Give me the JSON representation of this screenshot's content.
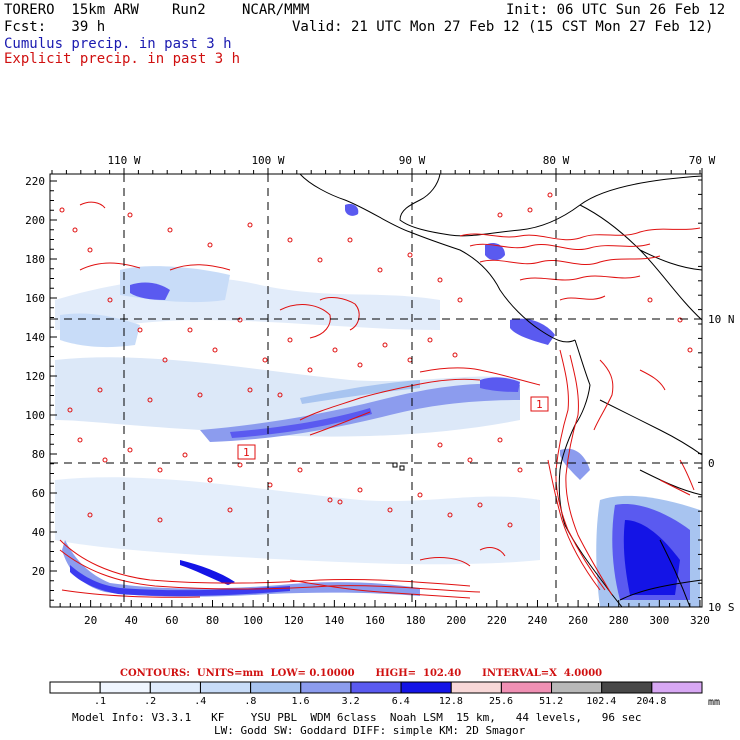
{
  "header": {
    "model": "TORERO  15km ARW",
    "run": "Run2",
    "org": "NCAR/MMM",
    "init": "Init: 06 UTC Sun 26 Feb 12",
    "fcst": "Fcst:   39 h",
    "valid": "Valid: 21 UTC Mon 27 Feb 12 (15 CST Mon 27 Feb 12)",
    "line_cumulus": "Cumulus precip. in past 3 h",
    "line_explicit": "Explicit precip. in past 3 h"
  },
  "map": {
    "lon_labels": [
      "110 W",
      "100 W",
      "90 W",
      "80 W",
      "70 W"
    ],
    "lat_labels": [
      "10 N",
      "0",
      "10 S"
    ],
    "x_ticks": [
      "20",
      "40",
      "60",
      "80",
      "100",
      "120",
      "140",
      "160",
      "180",
      "200",
      "220",
      "240",
      "260",
      "280",
      "300",
      "320"
    ],
    "y_ticks": [
      "220",
      "200",
      "180",
      "160",
      "140",
      "120",
      "100",
      "80",
      "60",
      "40",
      "20"
    ],
    "contour_label_1": "1",
    "contour_label_2": "1"
  },
  "contours": {
    "text": "CONTOURS:  UNITS=mm  LOW= 0.10000      HIGH=  102.40      INTERVAL=X  4.0000"
  },
  "legend": {
    "unit": "mm",
    "labels": [
      ".1",
      ".2",
      ".4",
      ".8",
      "1.6",
      "3.2",
      "6.4",
      "12.8",
      "25.6",
      "51.2",
      "102.4",
      "204.8"
    ],
    "colors": [
      "#ffffff",
      "#f0f6ff",
      "#e0ecfc",
      "#c8dcf8",
      "#a8c4f0",
      "#8c9cee",
      "#5a5af0",
      "#1414e6",
      "#f8d8d8",
      "#f090b4",
      "#b8b8b8",
      "#484848",
      "#d8a8f4"
    ]
  },
  "footer": {
    "line1": "Model Info: V3.3.1   KF    YSU PBL  WDM 6class  Noah LSM  15 km,   44 levels,   96 sec",
    "line2": "LW: Godd SW: Goddard DIFF: simple KM: 2D Smagor"
  }
}
